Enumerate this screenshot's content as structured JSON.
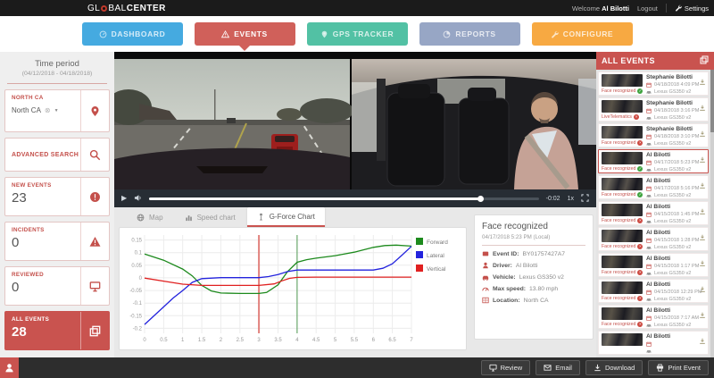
{
  "header": {
    "logo_left": "GL",
    "logo_right": "BAL",
    "logo_bold": "CENTER",
    "welcome_prefix": "Welcome",
    "user": "Al Bilotti",
    "logout_label": "Logout",
    "settings_label": "Settings"
  },
  "nav": {
    "tabs": [
      {
        "label": "DASHBOARD",
        "color": "#45aae0",
        "active": false
      },
      {
        "label": "EVENTS",
        "color": "#d0605a",
        "active": true
      },
      {
        "label": "GPS TRACKER",
        "color": "#52c1a4",
        "active": false
      },
      {
        "label": "REPORTS",
        "color": "#97a6c5",
        "active": false
      },
      {
        "label": "CONFIGURE",
        "color": "#f7a942",
        "active": false
      }
    ]
  },
  "sidebar": {
    "time_period_title": "Time period",
    "time_period_range": "(04/12/2018 - 04/18/2018)",
    "region_label": "NORTH CA",
    "region_value": "North CA",
    "advanced_search_label": "ADVANCED SEARCH",
    "counters": [
      {
        "label": "NEW EVENTS",
        "value": "23"
      },
      {
        "label": "INCIDENTS",
        "value": "0"
      },
      {
        "label": "REVIEWED",
        "value": "0"
      },
      {
        "label": "ALL EVENTS",
        "value": "28",
        "active": true
      }
    ]
  },
  "player": {
    "time_remaining": "-0:02",
    "speed": "1x"
  },
  "chart_tabs": {
    "items": [
      {
        "label": "Map",
        "active": false
      },
      {
        "label": "Speed chart",
        "active": false
      },
      {
        "label": "G-Force Chart",
        "active": true
      }
    ]
  },
  "chart_data": {
    "type": "line",
    "title": "G-Force Chart",
    "xlabel": "",
    "ylabel": "",
    "xlim": [
      0,
      7
    ],
    "ylim": [
      -0.22,
      0.17
    ],
    "xticks": [
      0,
      0.5,
      1,
      1.5,
      2,
      2.5,
      3,
      3.5,
      4,
      4.5,
      5,
      5.5,
      6,
      6.5,
      7
    ],
    "yticks": [
      0.15,
      0.1,
      0.05,
      0,
      -0.05,
      -0.1,
      -0.15,
      -0.2
    ],
    "grid": true,
    "legend_position": "right",
    "markers": [
      {
        "x": 3,
        "color": "#e2827d",
        "width": 2
      },
      {
        "x": 4,
        "color": "#4f9a52",
        "width": 1
      }
    ],
    "series": [
      {
        "name": "Forward",
        "color": "#1d8a1d",
        "points": [
          [
            0,
            0.095
          ],
          [
            0.5,
            0.07
          ],
          [
            1,
            0.035
          ],
          [
            1.25,
            0.008
          ],
          [
            1.5,
            -0.03
          ],
          [
            1.75,
            -0.052
          ],
          [
            2,
            -0.06
          ],
          [
            2.5,
            -0.062
          ],
          [
            3,
            -0.062
          ],
          [
            3.2,
            -0.058
          ],
          [
            3.5,
            -0.028
          ],
          [
            3.75,
            0.025
          ],
          [
            4,
            0.062
          ],
          [
            4.25,
            0.072
          ],
          [
            4.5,
            0.078
          ],
          [
            5,
            0.088
          ],
          [
            5.5,
            0.102
          ],
          [
            6,
            0.121
          ],
          [
            6.3,
            0.128
          ],
          [
            6.6,
            0.13
          ],
          [
            7,
            0.126
          ]
        ]
      },
      {
        "name": "Lateral",
        "color": "#2323dd",
        "points": [
          [
            0,
            -0.185
          ],
          [
            0.5,
            -0.115
          ],
          [
            0.75,
            -0.08
          ],
          [
            1,
            -0.05
          ],
          [
            1.25,
            -0.018
          ],
          [
            1.5,
            -0.003
          ],
          [
            2,
            0.001
          ],
          [
            2.5,
            0.001
          ],
          [
            3,
            0.001
          ],
          [
            3.25,
            0.005
          ],
          [
            3.5,
            0.013
          ],
          [
            3.75,
            0.025
          ],
          [
            4,
            0.031
          ],
          [
            4.5,
            0.031
          ],
          [
            5,
            0.031
          ],
          [
            5.5,
            0.031
          ],
          [
            6,
            0.031
          ],
          [
            6.25,
            0.038
          ],
          [
            6.5,
            0.056
          ],
          [
            6.75,
            0.09
          ],
          [
            7,
            0.125
          ]
        ]
      },
      {
        "name": "Vertical",
        "color": "#e02020",
        "points": [
          [
            0,
            -0.001
          ],
          [
            0.5,
            -0.013
          ],
          [
            1,
            -0.025
          ],
          [
            1.5,
            -0.03
          ],
          [
            2,
            -0.03
          ],
          [
            2.5,
            -0.03
          ],
          [
            3,
            -0.03
          ],
          [
            3.4,
            -0.024
          ],
          [
            3.6,
            -0.012
          ],
          [
            3.8,
            -0.002
          ],
          [
            4,
            0.002
          ],
          [
            4.5,
            0.003
          ],
          [
            5,
            0.003
          ],
          [
            6,
            0.003
          ],
          [
            7,
            0.003
          ]
        ]
      }
    ]
  },
  "details": {
    "title": "Face recognized",
    "datetime": "04/17/2018 5:23 PM (Local)",
    "rows": [
      {
        "label": "Event ID:",
        "value": "BY01757427A7"
      },
      {
        "label": "Driver:",
        "value": "Al Bilotti"
      },
      {
        "label": "Vehicle:",
        "value": "Lexus GS350 v2"
      },
      {
        "label": "Max speed:",
        "value": "13.80 mph"
      },
      {
        "label": "Location:",
        "value": "North CA"
      }
    ]
  },
  "events_panel": {
    "title": "ALL EVENTS",
    "events": [
      {
        "name": "Stephanie Bilotti",
        "date": "04/18/2018 4:09 PM",
        "vehicle": "Lexus GS350 v2",
        "tag": "Face recognized",
        "status": "green",
        "selected": false
      },
      {
        "name": "Stephanie Bilotti",
        "date": "04/18/2018 3:16 PM",
        "vehicle": "Lexus GS350 v2",
        "tag": "LiveTelematics",
        "status": "red",
        "selected": false
      },
      {
        "name": "Stephanie Bilotti",
        "date": "04/18/2018 3:10 PM",
        "vehicle": "Lexus GS350 v2",
        "tag": "Face recognized",
        "status": "red",
        "selected": false
      },
      {
        "name": "Al Bilotti",
        "date": "04/17/2018 5:23 PM",
        "vehicle": "Lexus GS350 v2",
        "tag": "Face recognized",
        "status": "green",
        "selected": true
      },
      {
        "name": "Al Bilotti",
        "date": "04/17/2018 5:16 PM",
        "vehicle": "Lexus GS350 v2",
        "tag": "Face recognized",
        "status": "green",
        "selected": false
      },
      {
        "name": "Al Bilotti",
        "date": "04/15/2018 1:45 PM",
        "vehicle": "Lexus GS350 v2",
        "tag": "Face recognized",
        "status": "red",
        "selected": false
      },
      {
        "name": "Al Bilotti",
        "date": "04/15/2018 1:28 PM",
        "vehicle": "Lexus GS350 v2",
        "tag": "Face recognized",
        "status": "red",
        "selected": false
      },
      {
        "name": "Al Bilotti",
        "date": "04/15/2018 1:17 PM",
        "vehicle": "Lexus GS350 v2",
        "tag": "Face recognized",
        "status": "red",
        "selected": false
      },
      {
        "name": "Al Bilotti",
        "date": "04/15/2018 12:29 PM",
        "vehicle": "Lexus GS350 v2",
        "tag": "Face recognized",
        "status": "red",
        "selected": false
      },
      {
        "name": "Al Bilotti",
        "date": "04/15/2018 7:17 AM",
        "vehicle": "Lexus GS350 v2",
        "tag": "Face recognized",
        "status": "red",
        "selected": false
      },
      {
        "name": "Al Bilotti",
        "date": "",
        "vehicle": "",
        "tag": "",
        "status": "red",
        "selected": false
      }
    ]
  },
  "footer": {
    "buttons": [
      {
        "label": "Review"
      },
      {
        "label": "Email"
      },
      {
        "label": "Download"
      },
      {
        "label": "Print Event"
      }
    ]
  }
}
